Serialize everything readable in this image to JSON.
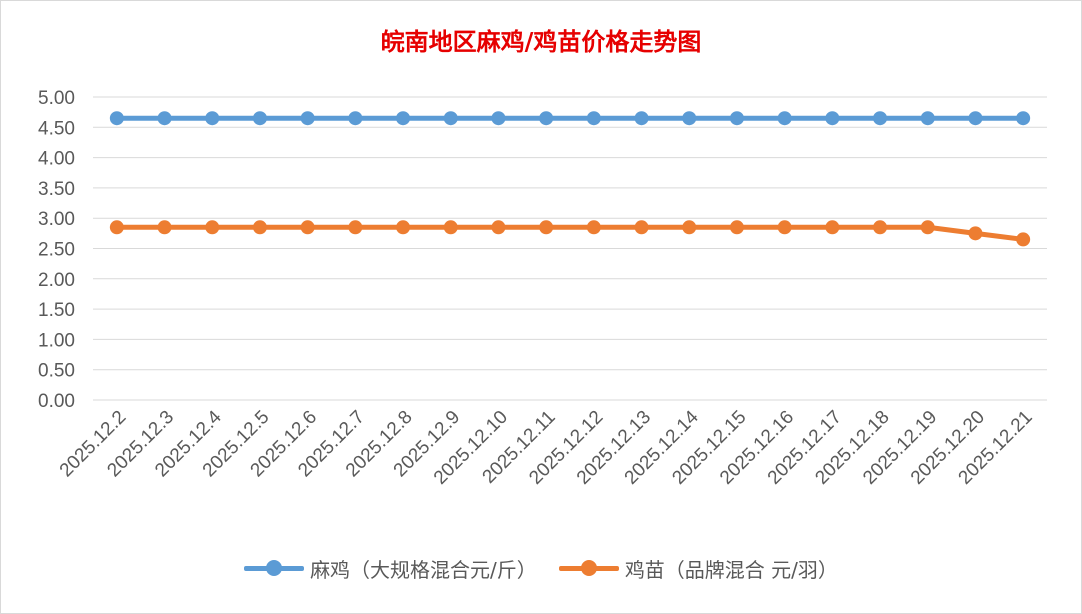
{
  "chart_data": {
    "type": "line",
    "title": "皖南地区麻鸡/鸡苗价格走势图",
    "categories": [
      "2025.12.2",
      "2025.12.3",
      "2025.12.4",
      "2025.12.5",
      "2025.12.6",
      "2025.12.7",
      "2025.12.8",
      "2025.12.9",
      "2025.12.10",
      "2025.12.11",
      "2025.12.12",
      "2025.12.13",
      "2025.12.14",
      "2025.12.15",
      "2025.12.16",
      "2025.12.17",
      "2025.12.18",
      "2025.12.19",
      "2025.12.20",
      "2025.12.21"
    ],
    "ylim": [
      0,
      5
    ],
    "ystep": 0.5,
    "ytick_labels": [
      "0.00",
      "0.50",
      "1.00",
      "1.50",
      "2.00",
      "2.50",
      "3.00",
      "3.50",
      "4.00",
      "4.50",
      "5.00"
    ],
    "grid": true,
    "legend_position": "bottom",
    "series": [
      {
        "name": "麻鸡（大规格混合元/斤）",
        "color": "#5b9bd5",
        "values": [
          4.65,
          4.65,
          4.65,
          4.65,
          4.65,
          4.65,
          4.65,
          4.65,
          4.65,
          4.65,
          4.65,
          4.65,
          4.65,
          4.65,
          4.65,
          4.65,
          4.65,
          4.65,
          4.65,
          4.65
        ]
      },
      {
        "name": "鸡苗（品牌混合 元/羽）",
        "color": "#ed7d31",
        "values": [
          2.85,
          2.85,
          2.85,
          2.85,
          2.85,
          2.85,
          2.85,
          2.85,
          2.85,
          2.85,
          2.85,
          2.85,
          2.85,
          2.85,
          2.85,
          2.85,
          2.85,
          2.85,
          2.75,
          2.65
        ]
      }
    ]
  }
}
